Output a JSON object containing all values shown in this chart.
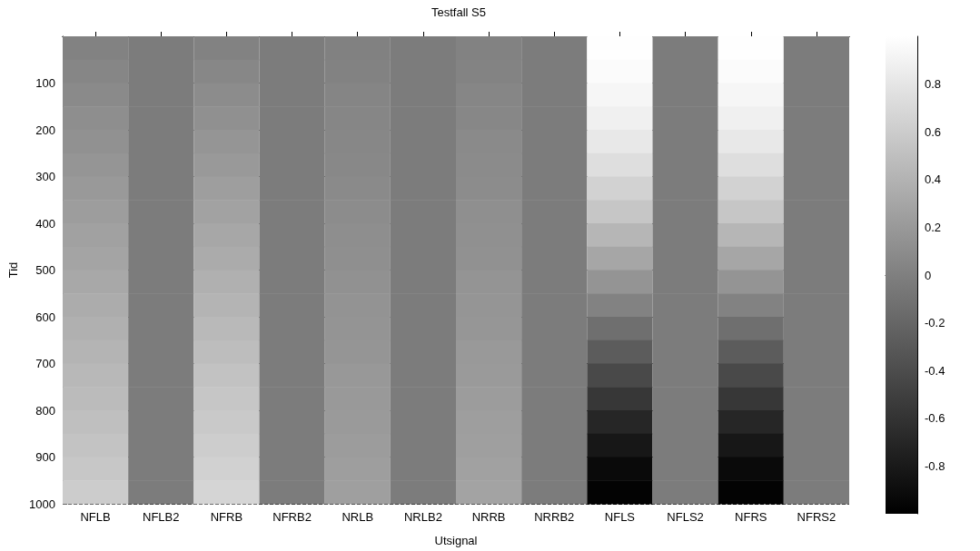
{
  "chart_data": {
    "type": "heatmap",
    "title": "Testfall S5",
    "xlabel": "Utsignal",
    "ylabel": "Tid",
    "categories": [
      "NFLB",
      "NFLB2",
      "NFRB",
      "NFRB2",
      "NRLB",
      "NRLB2",
      "NRRB",
      "NRRB2",
      "NFLS",
      "NFLS2",
      "NFRS",
      "NFRS2"
    ],
    "ylim": [
      1000,
      0
    ],
    "yticks": [
      100,
      200,
      300,
      400,
      500,
      600,
      700,
      800,
      900,
      1000
    ],
    "grid": "y",
    "clim": [
      -1,
      1
    ],
    "cticks": [
      -0.8,
      -0.6,
      -0.4,
      -0.2,
      0,
      0.2,
      0.4,
      0.6,
      0.8
    ],
    "cells": [
      [
        0.02,
        -0.03,
        0.02,
        -0.03,
        0.01,
        -0.03,
        0.02,
        -0.03,
        0.99,
        -0.03,
        0.99,
        -0.03
      ],
      [
        0.05,
        -0.03,
        0.06,
        -0.03,
        0.02,
        -0.03,
        0.03,
        -0.03,
        0.97,
        -0.03,
        0.97,
        -0.03
      ],
      [
        0.08,
        -0.03,
        0.1,
        -0.03,
        0.04,
        -0.03,
        0.05,
        -0.03,
        0.93,
        -0.03,
        0.93,
        -0.03
      ],
      [
        0.11,
        -0.03,
        0.13,
        -0.03,
        0.05,
        -0.03,
        0.06,
        -0.03,
        0.88,
        -0.03,
        0.88,
        -0.03
      ],
      [
        0.14,
        -0.03,
        0.17,
        -0.03,
        0.06,
        -0.03,
        0.08,
        -0.03,
        0.82,
        -0.03,
        0.82,
        -0.03
      ],
      [
        0.17,
        -0.03,
        0.2,
        -0.03,
        0.07,
        -0.03,
        0.09,
        -0.03,
        0.74,
        -0.03,
        0.74,
        -0.03
      ],
      [
        0.2,
        -0.03,
        0.24,
        -0.03,
        0.08,
        -0.03,
        0.1,
        -0.03,
        0.65,
        -0.03,
        0.65,
        -0.03
      ],
      [
        0.23,
        -0.03,
        0.27,
        -0.03,
        0.1,
        -0.03,
        0.12,
        -0.03,
        0.55,
        -0.03,
        0.55,
        -0.03
      ],
      [
        0.26,
        -0.03,
        0.31,
        -0.03,
        0.11,
        -0.03,
        0.13,
        -0.03,
        0.43,
        -0.03,
        0.43,
        -0.03
      ],
      [
        0.29,
        -0.03,
        0.34,
        -0.03,
        0.12,
        -0.03,
        0.14,
        -0.03,
        0.3,
        -0.03,
        0.3,
        -0.03
      ],
      [
        0.32,
        -0.03,
        0.38,
        -0.03,
        0.14,
        -0.03,
        0.16,
        -0.03,
        0.16,
        -0.03,
        0.16,
        -0.03
      ],
      [
        0.35,
        -0.03,
        0.41,
        -0.03,
        0.15,
        -0.03,
        0.17,
        -0.03,
        0.02,
        -0.03,
        0.02,
        -0.03
      ],
      [
        0.38,
        -0.03,
        0.45,
        -0.03,
        0.16,
        -0.03,
        0.18,
        -0.03,
        -0.13,
        -0.03,
        -0.13,
        -0.03
      ],
      [
        0.41,
        -0.03,
        0.48,
        -0.03,
        0.17,
        -0.03,
        0.2,
        -0.03,
        -0.28,
        -0.03,
        -0.28,
        -0.03
      ],
      [
        0.44,
        -0.03,
        0.52,
        -0.03,
        0.19,
        -0.03,
        0.21,
        -0.03,
        -0.43,
        -0.03,
        -0.43,
        -0.03
      ],
      [
        0.47,
        -0.03,
        0.55,
        -0.03,
        0.2,
        -0.03,
        0.22,
        -0.03,
        -0.57,
        -0.03,
        -0.57,
        -0.03
      ],
      [
        0.5,
        -0.03,
        0.58,
        -0.03,
        0.21,
        -0.03,
        0.24,
        -0.03,
        -0.7,
        -0.03,
        -0.7,
        -0.03
      ],
      [
        0.53,
        -0.03,
        0.61,
        -0.03,
        0.22,
        -0.03,
        0.25,
        -0.03,
        -0.82,
        -0.03,
        -0.82,
        -0.03
      ],
      [
        0.56,
        -0.03,
        0.64,
        -0.03,
        0.24,
        -0.03,
        0.26,
        -0.03,
        -0.92,
        -0.03,
        -0.92,
        -0.03
      ],
      [
        0.6,
        -0.03,
        0.67,
        -0.03,
        0.25,
        -0.03,
        0.28,
        -0.03,
        -0.98,
        -0.03,
        -0.98,
        -0.03
      ]
    ]
  }
}
